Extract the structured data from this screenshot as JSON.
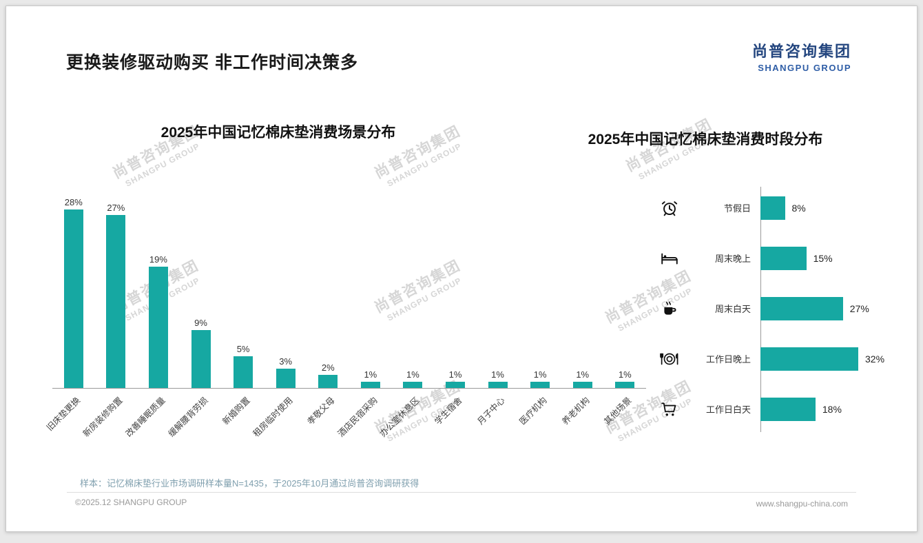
{
  "header": {
    "title": "更换装修驱动购买 非工作时间决策多"
  },
  "logo": {
    "cn": "尚普咨询集团",
    "en": "SHANGPU GROUP"
  },
  "watermark": {
    "cn": "尚普咨询集团",
    "en": "SHANGPU GROUP"
  },
  "colors": {
    "bar": "#16A8A2",
    "logo_cn": "#24467F",
    "logo_en": "#2E5DA6",
    "note": "#7F9FAE"
  },
  "chart_data": [
    {
      "type": "bar",
      "orientation": "vertical",
      "title": "2025年中国记忆棉床垫消费场景分布",
      "categories": [
        "旧床垫更换",
        "新房装修购置",
        "改善睡眠质量",
        "缓解腰背劳损",
        "新婚购置",
        "租房临时使用",
        "孝敬父母",
        "酒店民宿采购",
        "办公室休息区",
        "学生宿舍",
        "月子中心",
        "医疗机构",
        "养老机构",
        "其他场景"
      ],
      "values": [
        28,
        27,
        19,
        9,
        5,
        3,
        2,
        1,
        1,
        1,
        1,
        1,
        1,
        1
      ],
      "unit": "%",
      "ylim": [
        0,
        30
      ],
      "grid": false,
      "data_labels": true
    },
    {
      "type": "bar",
      "orientation": "horizontal",
      "title": "2025年中国记忆棉床垫消费时段分布",
      "categories": [
        "节假日",
        "周末晚上",
        "周末白天",
        "工作日晚上",
        "工作日白天"
      ],
      "values": [
        8,
        15,
        27,
        32,
        18
      ],
      "icons": [
        "alarm-clock",
        "bed",
        "coffee-cup",
        "dining-plate",
        "shopping-cart"
      ],
      "unit": "%",
      "xlim": [
        0,
        35
      ],
      "grid": false,
      "data_labels": true
    }
  ],
  "footer": {
    "note": "样本：记忆棉床垫行业市场调研样本量N=1435，于2025年10月通过尚普咨询调研获得",
    "copyright": "©2025.12 SHANGPU GROUP",
    "website": "www.shangpu-china.com"
  }
}
